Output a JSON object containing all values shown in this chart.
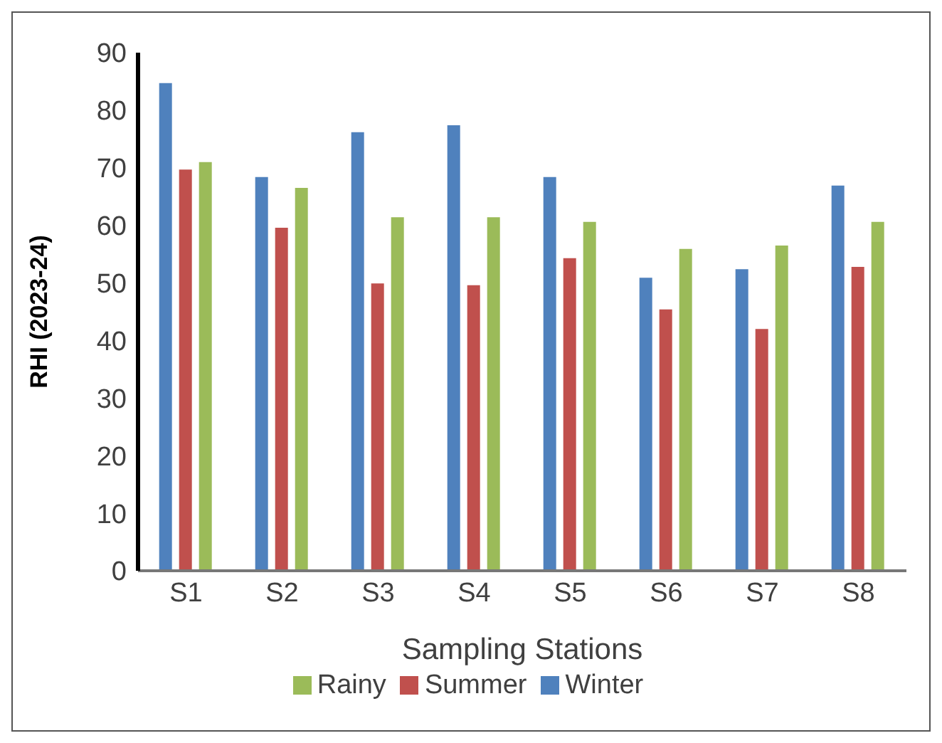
{
  "chart_data": {
    "type": "bar",
    "xlabel": "Sampling Stations",
    "ylabel": "RHI (2023-24)",
    "categories": [
      "S1",
      "S2",
      "S3",
      "S4",
      "S5",
      "S6",
      "S7",
      "S8"
    ],
    "series": [
      {
        "name": "Winter",
        "color": "#4f81bd",
        "values": [
          84.7,
          68.4,
          76.2,
          77.4,
          68.4,
          50.9,
          52.4,
          66.9
        ]
      },
      {
        "name": "Summer",
        "color": "#c0504d",
        "values": [
          69.7,
          59.6,
          49.9,
          49.6,
          54.3,
          45.4,
          42.0,
          52.8
        ]
      },
      {
        "name": "Rainy",
        "color": "#9bbb59",
        "values": [
          71.0,
          66.5,
          61.4,
          61.4,
          60.6,
          55.9,
          56.5,
          60.6
        ]
      }
    ],
    "ylim": [
      0,
      90
    ],
    "yticks": [
      0,
      10,
      20,
      30,
      40,
      50,
      60,
      70,
      80,
      90
    ],
    "grid": false,
    "legend": "bottom"
  }
}
